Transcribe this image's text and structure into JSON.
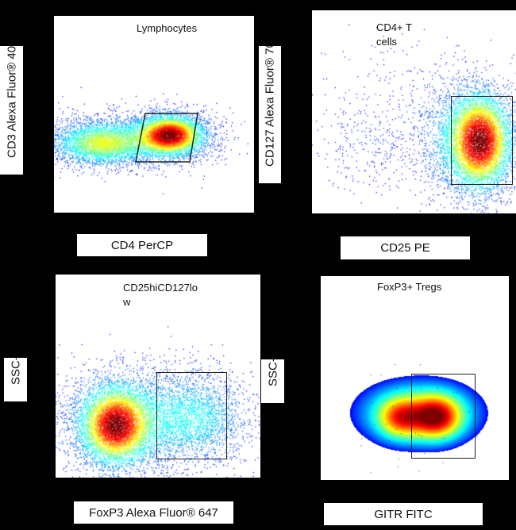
{
  "chart_data": [
    {
      "type": "scatter",
      "title": "Lymphocytes",
      "xlabel": "CD4 PerCP",
      "ylabel": "CD3 Alexa Fluor® 40",
      "gate_shape": "parallelogram",
      "color_scale": "density (jet)"
    },
    {
      "type": "scatter",
      "title_lines": [
        "CD4+ T",
        "cells"
      ],
      "xlabel": "CD25 PE",
      "ylabel": "CD127 Alexa Fluor® 70",
      "gate_shape": "rectangle",
      "color_scale": "density (jet)"
    },
    {
      "type": "scatter",
      "title_lines": [
        "CD25hiCD127lo",
        "w"
      ],
      "xlabel": "FoxP3 Alexa Fluor® 647",
      "ylabel": "SSC-A",
      "gate_shape": "rectangle",
      "color_scale": "density (jet)"
    },
    {
      "type": "heatmap",
      "title": "FoxP3+ Tregs",
      "xlabel": "GITR FITC",
      "ylabel": "SSC-A",
      "gate_shape": "rectangle",
      "color_scale": "density (jet)"
    }
  ]
}
